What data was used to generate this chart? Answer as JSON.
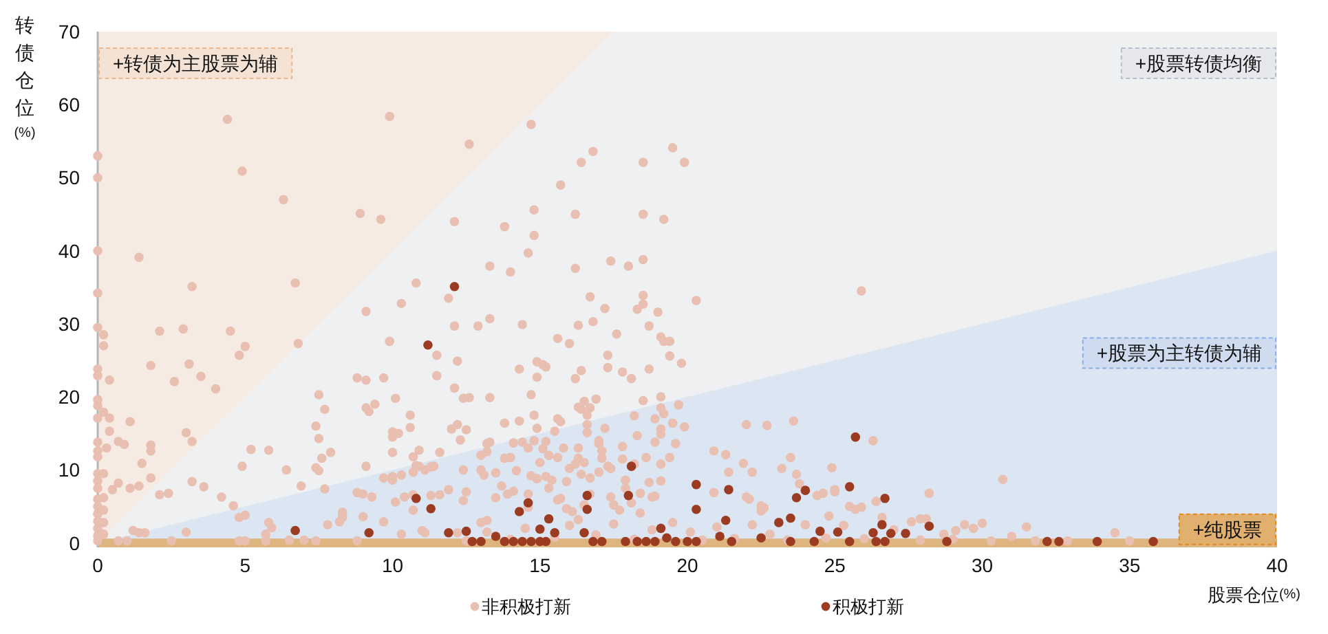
{
  "chart_data": {
    "type": "scatter",
    "xlabel": "股票仓位(%)",
    "ylabel": "转债仓位(%)",
    "xlim": [
      0,
      40
    ],
    "ylim": [
      -0.6,
      70
    ],
    "xticks": [
      0,
      5,
      10,
      15,
      20,
      25,
      30,
      35,
      40
    ],
    "yticks": [
      0,
      10,
      20,
      30,
      40,
      50,
      60,
      70
    ],
    "legend": "bottom",
    "series": [
      {
        "type": "area",
        "name": "+转债为主股票为辅",
        "color": "#f6ebe2",
        "x": [
          0,
          17.5
        ],
        "values": [
          70,
          70
        ]
      },
      {
        "type": "area",
        "name": "+股票转债均衡",
        "color": "#eff0f2",
        "x": [
          0,
          17.5,
          40
        ],
        "values": [
          0,
          70,
          70
        ]
      },
      {
        "type": "area",
        "name": "+股票为主转债为辅",
        "color": "#dce5f2",
        "x": [
          0,
          40
        ],
        "values": [
          0,
          40
        ]
      },
      {
        "name": "非积极打新",
        "color": "#e8bfb1",
        "marker": "circle",
        "x": [
          0,
          0,
          0,
          0,
          0,
          0.2,
          0.2,
          0,
          0,
          0.4,
          0,
          0,
          0,
          0.2,
          0.4,
          0.4,
          0,
          0,
          0,
          0.3,
          0.7,
          0.9,
          1.1,
          0,
          0,
          0,
          0,
          0,
          0,
          0,
          0,
          0,
          0,
          0.2,
          0.2,
          0.2,
          0.2,
          0.2,
          1.4,
          1.8,
          2.1,
          2.9,
          3.2,
          3.1,
          2.6,
          3.5,
          4,
          4.4,
          4.9,
          4.5,
          4.8,
          5,
          6.3,
          6.7,
          6.8,
          1.5,
          1.8,
          1.8,
          1.8,
          1.4,
          1.1,
          0.7,
          0.5,
          2.1,
          2.4,
          3,
          3.2,
          3.2,
          3.6,
          4.2,
          4.6,
          4.8,
          5,
          4.9,
          5.2,
          5.8,
          6.4,
          6.9,
          5.8,
          5.9,
          5.7,
          3,
          1.2,
          1.4,
          1.6,
          6.5,
          7,
          0.7,
          1,
          2.5,
          4.8,
          5,
          5.7,
          7.4,
          8.8,
          7.5,
          7.7,
          7.4,
          7.5,
          7.6,
          7.9,
          7.4,
          7.5,
          7.7,
          7.8,
          8.2,
          8.3,
          8.9,
          9.6,
          9.9,
          9.1,
          8.8,
          9.1,
          9.7,
          9.9,
          9.1,
          9.4,
          10.1,
          10.8,
          10.3,
          9.1,
          8.8,
          9,
          9.3,
          9,
          9.7,
          10,
          10,
          10.2,
          10,
          10.6,
          10.6,
          10.9,
          10.7,
          10.8,
          11.1,
          11.4,
          11.6,
          11.5,
          11.5,
          10.1,
          9.7,
          10.3,
          10.4,
          10.7,
          11,
          11.9,
          12.1,
          14.7,
          12.6,
          16.8,
          16.4,
          18.5,
          19.5,
          19.9,
          15.7,
          14.8,
          16.2,
          18.5,
          19.2,
          13.8,
          14.8,
          14.6,
          13.3,
          14,
          16.2,
          17.4,
          18,
          18.5,
          11.9,
          20.3,
          16.7,
          18.5,
          18.5,
          18.3,
          19,
          17.2,
          12.1,
          12.9,
          13.3,
          14.4,
          16.3,
          16.8,
          18.7,
          15.6,
          16,
          17.6,
          19.1,
          19.2,
          19.4,
          12.2,
          14.3,
          14.9,
          15.1,
          15.2,
          14.9,
          16.2,
          16.4,
          17.3,
          17.3,
          17.8,
          18.1,
          18.7,
          19.4,
          19.8,
          12.1,
          12.4,
          12.6,
          13.3,
          14.7,
          14.8,
          16.5,
          16.9,
          16.4,
          16.6,
          18.5,
          19.1,
          19.1,
          19.2,
          19.7,
          18.2,
          19.5,
          19.9,
          12,
          12.2,
          12.3,
          13.8,
          14.3,
          14.9,
          15.7,
          16.6,
          17.2,
          18.3,
          19.1,
          19.6,
          13.2,
          14.1,
          14.4,
          17,
          22,
          22.7,
          23.6,
          25.9,
          20.9,
          21.3,
          21.9,
          23.5,
          24.9,
          13,
          13.8,
          15.1,
          15.8,
          16.3,
          17.1,
          17.8,
          18.6,
          19.4,
          11.3,
          12.4,
          13,
          13.5,
          14.7,
          15.4,
          16,
          16.7,
          17.4,
          17.9,
          18.7,
          19.1,
          20.9,
          21.4,
          22,
          22.2,
          23.2,
          23.7,
          24.6,
          25,
          10.7,
          11.6,
          12.4,
          13.5,
          14.6,
          15.7,
          17.4,
          18.8,
          22.6,
          23.8,
          25.5,
          26.3,
          30.7,
          28.2,
          26.4,
          25.9,
          27.9,
          27.6,
          29.4,
          29.7,
          29.1,
          31.5,
          31,
          34.5,
          28.7,
          24.4,
          25,
          22.1,
          22.5,
          22.5,
          25.7,
          24.8,
          26.6,
          28.1,
          30,
          9.2,
          10,
          8.3,
          10,
          10.3,
          10.7,
          10.9,
          11.3,
          12.5,
          13.2,
          13.3,
          12.5,
          13.1,
          13,
          13.2,
          11.1,
          12.2,
          14,
          14.2,
          13.7,
          14.1,
          14.6,
          14.8,
          15,
          15.2,
          15.3,
          15.2,
          15.3,
          14.9,
          14.6,
          13.9,
          15.5,
          15.6,
          16.3,
          16.7,
          15.6,
          15.9,
          16.2,
          16.4,
          16.3,
          16.6,
          17,
          16.5,
          17,
          17.3,
          17.1,
          17.8,
          18.2,
          17.9,
          18.4,
          18.9,
          18.9,
          19.1,
          18.9,
          19.1,
          15.6,
          15.9,
          16.1,
          16.3,
          16.5,
          16.7,
          17.5,
          17.7,
          18.1,
          18.4,
          12.5,
          13.2,
          14,
          14.5,
          15.5,
          16,
          16.9,
          17.5,
          18.2,
          18.8,
          19.5,
          20.1,
          20.5,
          21,
          21.6,
          22.2,
          22.8,
          23.4,
          24,
          24.7,
          25.3,
          26,
          27,
          27.9,
          29,
          30.3,
          31.8,
          32.9,
          35
        ],
        "values": [
          53,
          50,
          40,
          34.2,
          29.5,
          28.5,
          27,
          23.8,
          22.9,
          22.3,
          19.6,
          18.8,
          17.1,
          17.9,
          17.1,
          15.3,
          13.8,
          12.6,
          11.8,
          13,
          13.9,
          13.5,
          16.6,
          9.5,
          8.5,
          7.5,
          6,
          5,
          4,
          3,
          2,
          1,
          0.3,
          9.5,
          6.2,
          4.5,
          2.8,
          1.2,
          39.1,
          24.3,
          29,
          29.3,
          35.1,
          24.5,
          22.1,
          22.8,
          21.1,
          58,
          50.9,
          29,
          25.7,
          26.9,
          47,
          35.6,
          27.3,
          10.9,
          13.4,
          12.6,
          8.9,
          7.8,
          7.5,
          8.2,
          7.3,
          6.6,
          6.8,
          15.1,
          13.9,
          8.4,
          7.7,
          6.3,
          5.1,
          3.5,
          3.8,
          10.5,
          12.8,
          12.7,
          10,
          7.8,
          2.8,
          2.1,
          1.2,
          1.5,
          1.7,
          1.4,
          1.4,
          0.4,
          0.4,
          0.3,
          0.3,
          0.3,
          0.3,
          0.3,
          0.3,
          0.3,
          0.3,
          20.3,
          18.3,
          16,
          14.3,
          11.6,
          12.4,
          10.3,
          9.9,
          7.4,
          2.5,
          2.9,
          4.2,
          45.1,
          44.3,
          58.4,
          31.7,
          22.6,
          22.3,
          22.6,
          27.6,
          18.5,
          19,
          19.8,
          35.6,
          32.8,
          10.5,
          6.9,
          6.7,
          6.3,
          3.6,
          8.9,
          9.1,
          15.2,
          15,
          12.4,
          17.5,
          15.8,
          12.7,
          11.8,
          10.6,
          10,
          10.5,
          12.4,
          25.7,
          22.9,
          5.6,
          2.9,
          1.2,
          6.3,
          4.5,
          1.7,
          7.3,
          44,
          57.3,
          54.6,
          53.6,
          52.1,
          52.1,
          54.1,
          52.1,
          49,
          45.6,
          45,
          45,
          44.3,
          43.3,
          42.1,
          39.7,
          37.9,
          37.1,
          37.6,
          38.6,
          37.9,
          38.8,
          33.5,
          33.2,
          33.7,
          33.9,
          32.7,
          32,
          31.6,
          32.1,
          29.7,
          29.7,
          30.7,
          29.9,
          29.8,
          30.3,
          29.7,
          28,
          27.3,
          28.6,
          28.2,
          27.6,
          27.6,
          24.9,
          23.8,
          24.8,
          24.4,
          24.1,
          22.7,
          22.5,
          23.6,
          25.7,
          24,
          23.4,
          22.5,
          23.8,
          25.6,
          24.6,
          21.2,
          19.8,
          19.9,
          19.9,
          20.3,
          17.5,
          19.4,
          19.7,
          18.3,
          17.5,
          19.5,
          20,
          18.5,
          17.7,
          18.9,
          17.4,
          16.4,
          15.9,
          15.6,
          16.2,
          14.1,
          16.4,
          16.7,
          15.7,
          16.6,
          16.2,
          15.7,
          14.7,
          14.9,
          13.6,
          13.6,
          13.7,
          13.8,
          13.6,
          16.2,
          16.1,
          16.7,
          34.5,
          12.6,
          12.1,
          10.9,
          11.7,
          10.3,
          12,
          11.6,
          12.9,
          13,
          11.6,
          11.6,
          13.2,
          11.7,
          11.7,
          10.4,
          10,
          10,
          9.6,
          9.2,
          8.6,
          10.2,
          8.9,
          10.2,
          8.6,
          8.3,
          8.5,
          6.9,
          9.7,
          6.3,
          9.7,
          10.2,
          9.4,
          6.8,
          7.3,
          6.6,
          6.6,
          5.8,
          6.2,
          4.9,
          6.1,
          6.3,
          6.3,
          4.8,
          8.1,
          5,
          14,
          8.7,
          6.8,
          5.7,
          4.9,
          3.3,
          2.9,
          2.5,
          2,
          1.7,
          2.2,
          0.9,
          1.4,
          1.2,
          6.5,
          7,
          6,
          4.4,
          5.1,
          4.6,
          3.7,
          3.5,
          3.3,
          2.7,
          18,
          14.5,
          3.5,
          8.6,
          9.3,
          9.7,
          10.5,
          6.5,
          15.5,
          12.5,
          13.8,
          7,
          9.3,
          2.8,
          3.1,
          1.4,
          1.4,
          11.7,
          9.9,
          7.8,
          7.1,
          13,
          14,
          11,
          13.9,
          12,
          9.1,
          7.5,
          8.8,
          6.7,
          6.7,
          15.3,
          17,
          18.6,
          18.5,
          11.7,
          8.4,
          10.8,
          9.4,
          13,
          15.1,
          14,
          11,
          9.7,
          10.5,
          12.6,
          11.5,
          10.8,
          7.5,
          6.8,
          6.4,
          17,
          15.6,
          13.8,
          10.8,
          5.9,
          4.7,
          4.3,
          3.2,
          5.2,
          6.7,
          5.2,
          4.5,
          5.5,
          4.1,
          0.3,
          1.5,
          0.5,
          2,
          0.8,
          2.4,
          1.1,
          2.6,
          0.5,
          1.8,
          2.8,
          1.5,
          0.4,
          2.2,
          0.6,
          2.5,
          1.2,
          0.4,
          2.5,
          0.7,
          2.4,
          0.6,
          1.8,
          0.4,
          0.5,
          0.3,
          0.3,
          0.3,
          0.3
        ]
      },
      {
        "name": "积极打新",
        "color": "#9b3b22",
        "marker": "circle",
        "x": [
          6.7,
          9.2,
          11.2,
          10.8,
          11.3,
          12.1,
          11.9,
          25.7,
          18.1,
          20.3,
          21.4,
          16.6,
          18,
          14.6,
          14.3,
          16.6,
          20.3,
          24,
          23.7,
          25.5,
          15.3,
          15,
          15.5,
          12.5,
          13.5,
          16.5,
          19.1,
          21.3,
          23.1,
          23.5,
          24.5,
          25.1,
          21.1,
          22.5,
          26.7,
          26.6,
          28.2,
          26.3,
          26.9,
          27.4,
          26.4,
          26.7,
          28.8,
          32.2,
          32.6,
          33.9,
          35.8,
          12.7,
          13,
          13.8,
          14.1,
          14.4,
          14.7,
          15,
          15.2,
          16.8,
          17.1,
          17.9,
          18.3,
          18.6,
          18.9,
          19.3,
          19.6,
          20,
          20.3,
          21.5,
          23.5,
          24.3,
          25.5
        ],
        "values": [
          1.7,
          1.4,
          27.1,
          6.1,
          4.7,
          35.1,
          1.4,
          14.5,
          10.5,
          8,
          7.3,
          6.5,
          6.5,
          5.5,
          4.3,
          4.6,
          4.6,
          7.2,
          6.2,
          7.7,
          3.3,
          1.9,
          1.4,
          1.6,
          0.9,
          1.4,
          2,
          3.1,
          2.8,
          3.4,
          1.6,
          1.5,
          0.9,
          0.7,
          6.1,
          2.5,
          2.3,
          1.4,
          1.3,
          1.3,
          0.2,
          0.2,
          0.2,
          0.2,
          0.2,
          0.2,
          0.2,
          0.2,
          0.2,
          0.2,
          0.2,
          0.2,
          0.2,
          0.2,
          0.2,
          0.2,
          0.2,
          0.2,
          0.2,
          0.2,
          0.2,
          0.7,
          0.2,
          0.2,
          0.2,
          0.2,
          0.2,
          0.2,
          0.2
        ]
      }
    ],
    "bands": [
      {
        "axis": "y",
        "from": -0.6,
        "to": 0.6,
        "label": "+纯股票",
        "color": "#dfb57f"
      }
    ]
  }
}
